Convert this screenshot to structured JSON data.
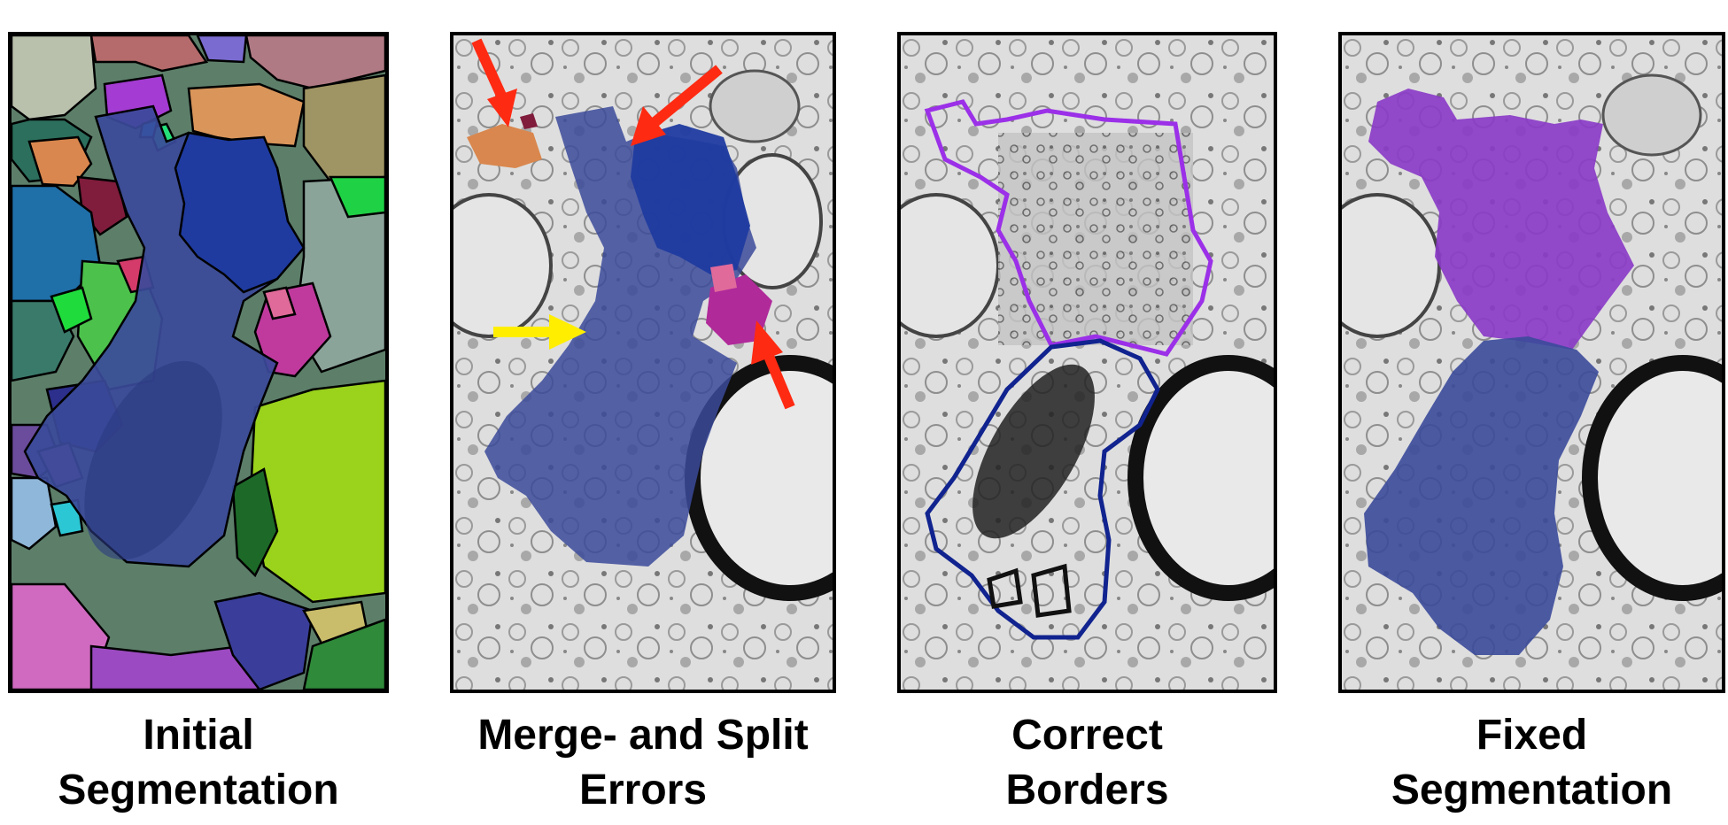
{
  "panels": [
    {
      "id": "initial",
      "caption": [
        "Initial",
        "Segmentation"
      ]
    },
    {
      "id": "errors",
      "caption": [
        "Merge- and Split",
        "Errors"
      ]
    },
    {
      "id": "borders",
      "caption": [
        "Correct",
        "Borders"
      ]
    },
    {
      "id": "fixed",
      "caption": [
        "Fixed",
        "Segmentation"
      ]
    }
  ],
  "colors": {
    "neuron_blue": "#3b4a9a",
    "split_blue": "#1f3ba0",
    "merge_purple": "#8a3bc7",
    "error_arrow": "#ff2a12",
    "missing_arrow": "#ffee00",
    "border_purple": "#9b30e8",
    "border_blue": "#10238f"
  }
}
